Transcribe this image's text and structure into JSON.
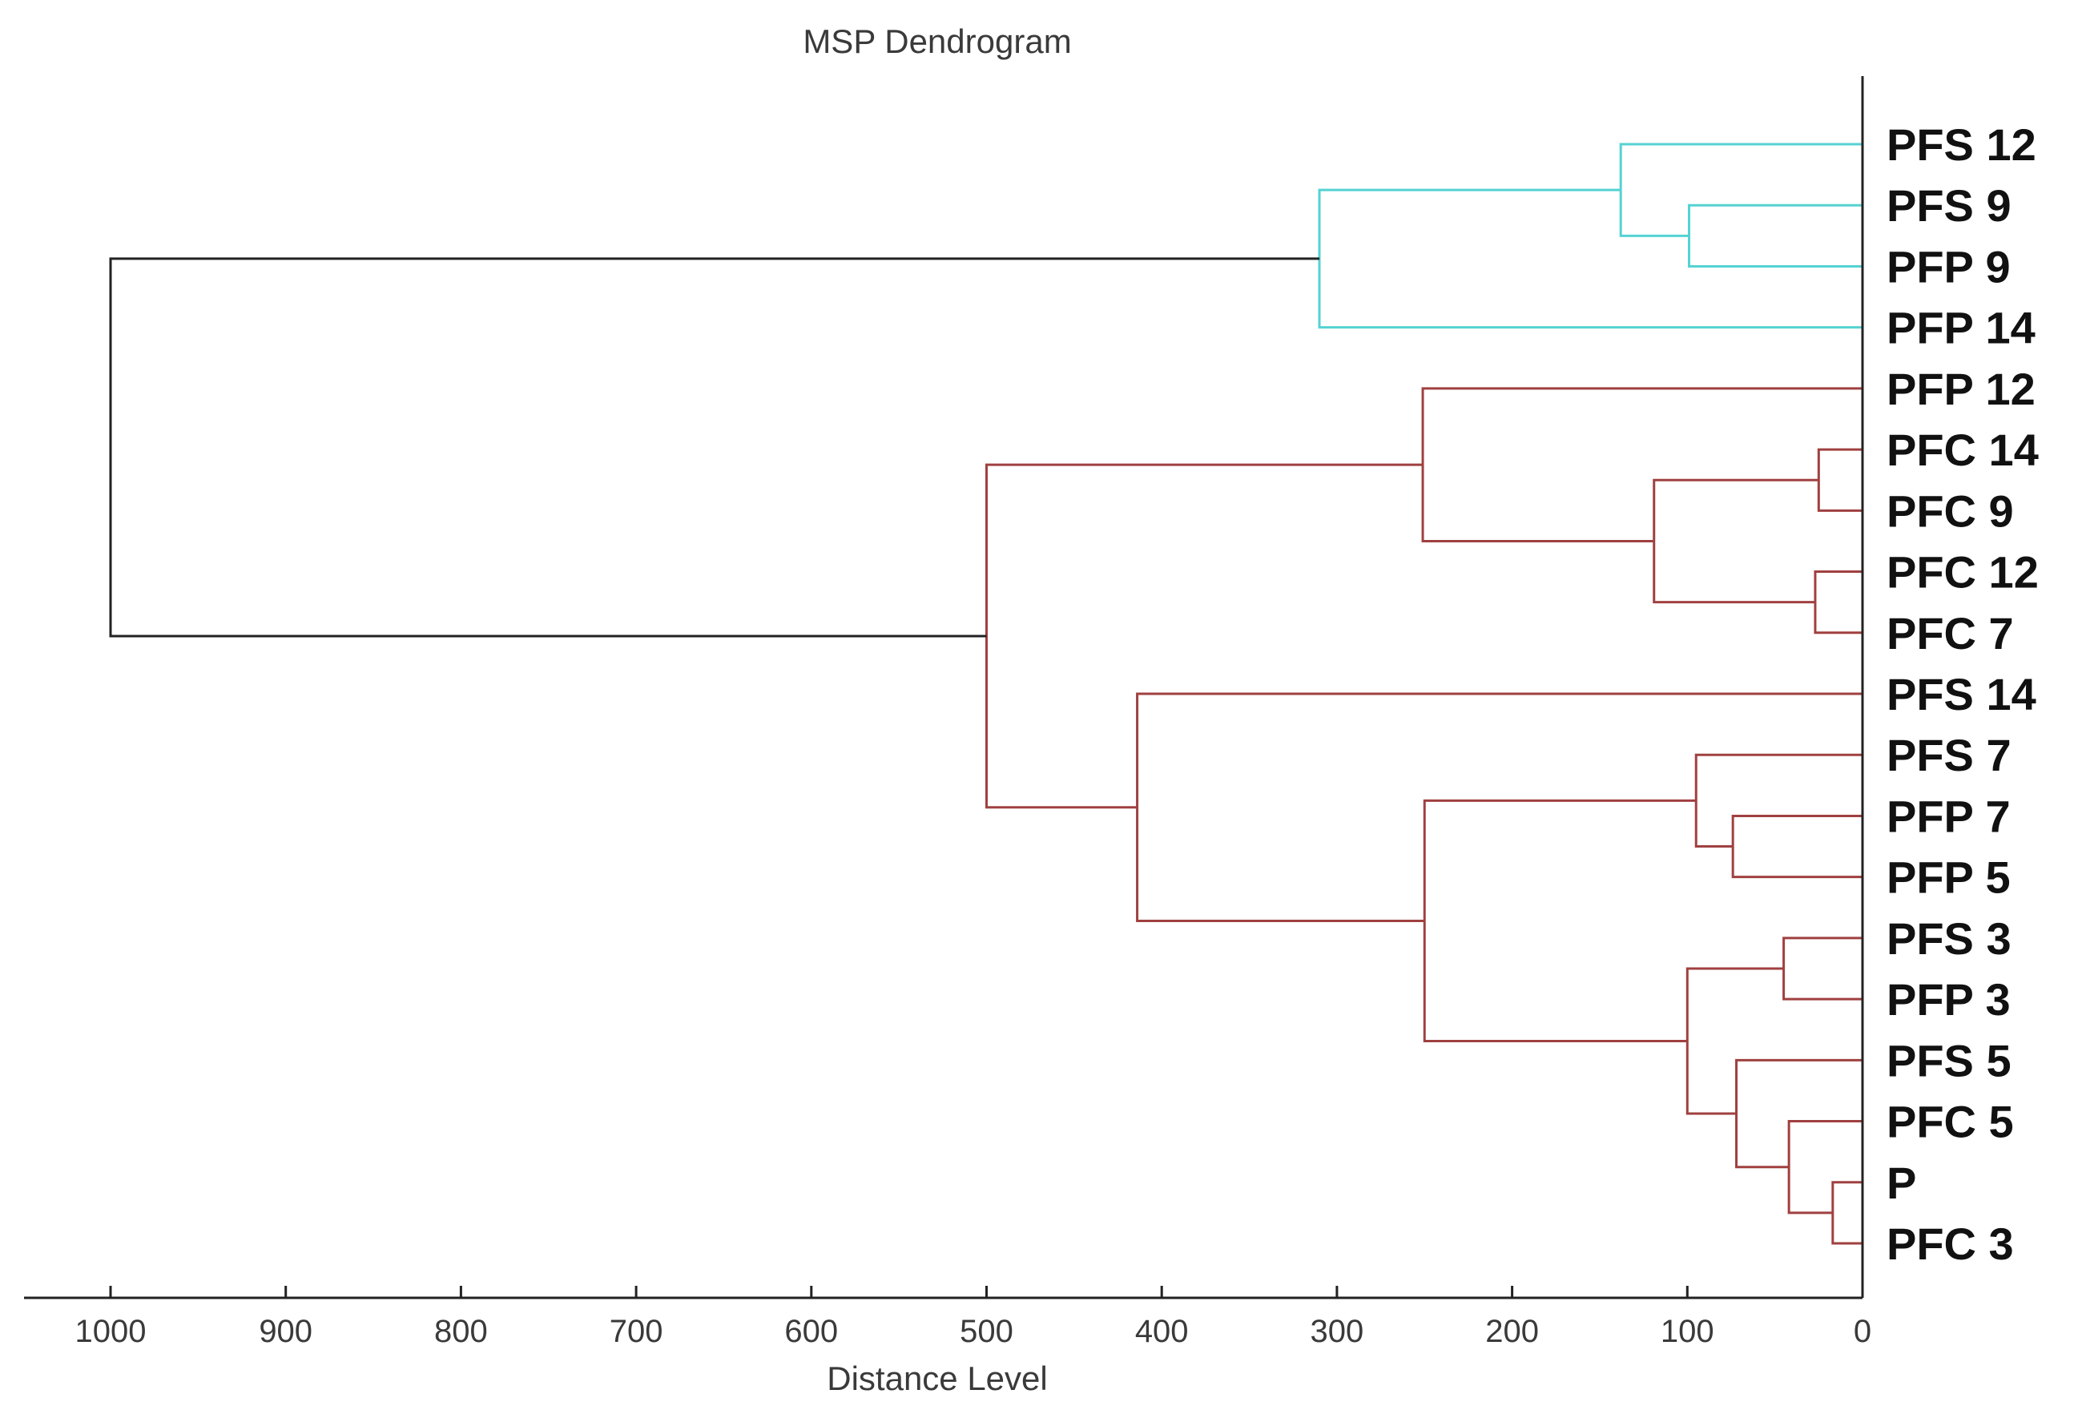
{
  "chart_data": {
    "type": "dendrogram",
    "title": "MSP Dendrogram",
    "xlabel": "Distance Level",
    "ylabel": "",
    "xlim": [
      1000,
      0
    ],
    "xticks": [
      1000,
      900,
      800,
      700,
      600,
      500,
      400,
      300,
      200,
      100,
      0
    ],
    "tick_labels": [
      "1000",
      "900",
      "800",
      "700",
      "600",
      "500",
      "400",
      "300",
      "200",
      "100",
      "0"
    ],
    "leaves": [
      "PFS 12",
      "PFS 9",
      "PFP 9",
      "PFP 14",
      "PFP 12",
      "PFC 14",
      "PFC 9",
      "PFC 12",
      "PFC 7",
      "PFS 14",
      "PFS 7",
      "PFP 7",
      "PFP 5",
      "PFS 3",
      "PFP 3",
      "PFS 5",
      "PFC 5",
      "P",
      "PFC 3"
    ],
    "merges": [
      {
        "id": "m1",
        "children": [
          "P",
          "PFC 3"
        ],
        "distance": 17,
        "cluster": "red"
      },
      {
        "id": "m2",
        "children": [
          "PFC 14",
          "PFC 9"
        ],
        "distance": 25,
        "cluster": "red"
      },
      {
        "id": "m3",
        "children": [
          "PFC 12",
          "PFC 7"
        ],
        "distance": 27,
        "cluster": "red"
      },
      {
        "id": "m4",
        "children": [
          "PFC 5",
          "m1"
        ],
        "distance": 42,
        "cluster": "red"
      },
      {
        "id": "m5",
        "children": [
          "PFS 3",
          "PFP 3"
        ],
        "distance": 45,
        "cluster": "red"
      },
      {
        "id": "m6",
        "children": [
          "PFS 5",
          "m4"
        ],
        "distance": 72,
        "cluster": "red"
      },
      {
        "id": "m7",
        "children": [
          "PFP 7",
          "PFP 5"
        ],
        "distance": 74,
        "cluster": "red"
      },
      {
        "id": "m8",
        "children": [
          "PFS 7",
          "m7"
        ],
        "distance": 95,
        "cluster": "red"
      },
      {
        "id": "m9",
        "children": [
          "PFP 9",
          "PFS 9"
        ],
        "distance": 99,
        "cluster": "cyan"
      },
      {
        "id": "m10",
        "children": [
          "m5",
          "m6"
        ],
        "distance": 100,
        "cluster": "red"
      },
      {
        "id": "m11",
        "children": [
          "m2",
          "m3"
        ],
        "distance": 119,
        "cluster": "red"
      },
      {
        "id": "m12",
        "children": [
          "PFS 12",
          "m9"
        ],
        "distance": 138,
        "cluster": "cyan"
      },
      {
        "id": "m13",
        "children": [
          "m8",
          "m10"
        ],
        "distance": 250,
        "cluster": "red"
      },
      {
        "id": "m14",
        "children": [
          "PFP 12",
          "m11"
        ],
        "distance": 251,
        "cluster": "red"
      },
      {
        "id": "m15",
        "children": [
          "m12",
          "PFP 14"
        ],
        "distance": 310,
        "cluster": "cyan"
      },
      {
        "id": "m16",
        "children": [
          "PFS 14",
          "m13"
        ],
        "distance": 414,
        "cluster": "red"
      },
      {
        "id": "m17",
        "children": [
          "m14",
          "m16"
        ],
        "distance": 500,
        "cluster": "red"
      },
      {
        "id": "m18",
        "children": [
          "m15",
          "m17"
        ],
        "distance": 1000,
        "cluster": "black"
      }
    ],
    "colors": {
      "cyan": "#55d2d2",
      "red": "#a04040",
      "black": "#222222"
    },
    "grid": false,
    "legend": "none"
  }
}
